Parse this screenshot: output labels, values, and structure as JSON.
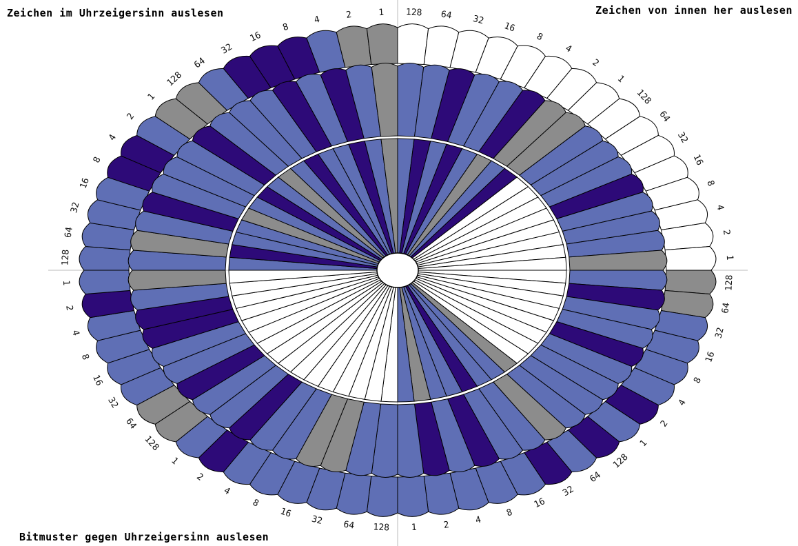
{
  "labels": {
    "top_left": "Zeichen im Uhrzeigersinn auslesen",
    "top_right": "Zeichen von innen her auslesen",
    "bottom_left": "Bitmuster gegen Uhrzeigersinn auslesen"
  },
  "bit_weights": [
    "128",
    "64",
    "32",
    "16",
    "8",
    "4",
    "2",
    "1"
  ],
  "colors": {
    "one": "#5f6fb5",
    "dark": "#2d0a78",
    "gray": "#8c8c8c",
    "zero": "#ffffff",
    "stroke": "#000000",
    "axis": "#bbbbbb"
  },
  "outer_ring": [
    "Z",
    "Z",
    "Z",
    "Z",
    "Z",
    "Z",
    "Z",
    "Z",
    "Z",
    "Z",
    "Z",
    "Z",
    "Z",
    "Z",
    "Z",
    "Z",
    "G",
    "G",
    "O",
    "O",
    "O",
    "O",
    "D",
    "O",
    "D",
    "O",
    "D",
    "O",
    "O",
    "O",
    "O",
    "O",
    "O",
    "O",
    "O",
    "O",
    "O",
    "O",
    "D",
    "O",
    "G",
    "G",
    "O",
    "O",
    "O",
    "O",
    "D",
    "O",
    "O",
    "O",
    "O",
    "O",
    "D",
    "D",
    "O",
    "G",
    "G",
    "O",
    "D",
    "D",
    "D",
    "O",
    "G",
    "G"
  ],
  "inner_ring": [
    "O",
    "O",
    "D",
    "O",
    "O",
    "D",
    "G",
    "G",
    "O",
    "O",
    "O",
    "D",
    "O",
    "O",
    "O",
    "G",
    "O",
    "D",
    "O",
    "O",
    "D",
    "O",
    "O",
    "O",
    "O",
    "G",
    "O",
    "O",
    "D",
    "O",
    "D",
    "O",
    "O",
    "O",
    "G",
    "G",
    "O",
    "O",
    "D",
    "O",
    "O",
    "D",
    "O",
    "O",
    "D",
    "D",
    "O",
    "G",
    "O",
    "G",
    "O",
    "D",
    "O",
    "O",
    "O",
    "D",
    "O",
    "O",
    "O",
    "D",
    "O",
    "D",
    "O",
    "G"
  ],
  "center_ring": [
    "O",
    "D",
    "O",
    "D",
    "O",
    "G",
    "O",
    "D",
    "Z",
    "Z",
    "Z",
    "Z",
    "Z",
    "Z",
    "Z",
    "Z",
    "Z",
    "Z",
    "Z",
    "Z",
    "Z",
    "Z",
    "Z",
    "Z",
    "G",
    "O",
    "O",
    "D",
    "O",
    "O",
    "G",
    "O",
    "Z",
    "Z",
    "Z",
    "Z",
    "Z",
    "Z",
    "Z",
    "Z",
    "Z",
    "Z",
    "Z",
    "Z",
    "Z",
    "Z",
    "Z",
    "Z",
    "O",
    "D",
    "O",
    "O",
    "G",
    "O",
    "D",
    "O",
    "G",
    "O",
    "D",
    "O",
    "O",
    "D",
    "O",
    "G"
  ]
}
